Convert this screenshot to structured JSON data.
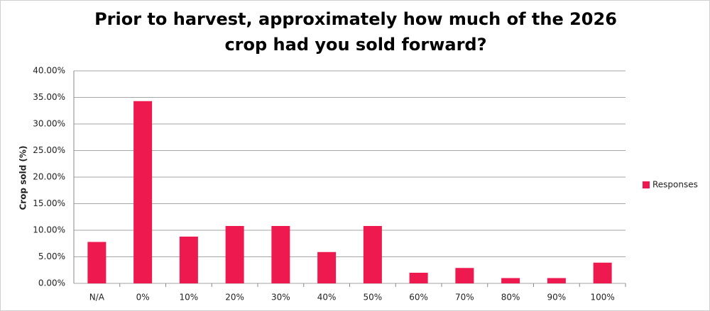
{
  "chart_data": {
    "type": "bar",
    "title": "Prior to harvest, approximately how much of the 2026 crop had you sold forward?",
    "y_label": "Crop sold (%)",
    "categories": [
      "N/A",
      "0%",
      "10%",
      "20%",
      "30%",
      "40%",
      "50%",
      "60%",
      "70%",
      "80%",
      "90%",
      "100%"
    ],
    "series": [
      {
        "name": "Responses",
        "color": "#ee1a4f",
        "values": [
          7.8,
          34.3,
          8.8,
          10.8,
          10.8,
          5.9,
          10.8,
          2.0,
          2.9,
          1.0,
          1.0,
          3.9
        ]
      }
    ],
    "ylim": [
      0,
      40
    ],
    "yticks": [
      {
        "value": 0,
        "label": "0.00%"
      },
      {
        "value": 5,
        "label": "5.00%"
      },
      {
        "value": 10,
        "label": "10.00%"
      },
      {
        "value": 15,
        "label": "15.00%"
      },
      {
        "value": 20,
        "label": "20.00%"
      },
      {
        "value": 25,
        "label": "25.00%"
      },
      {
        "value": 30,
        "label": "30.00%"
      },
      {
        "value": 35,
        "label": "35.00%"
      },
      {
        "value": 40,
        "label": "40.00%"
      }
    ],
    "grid": true,
    "legend": "right"
  }
}
